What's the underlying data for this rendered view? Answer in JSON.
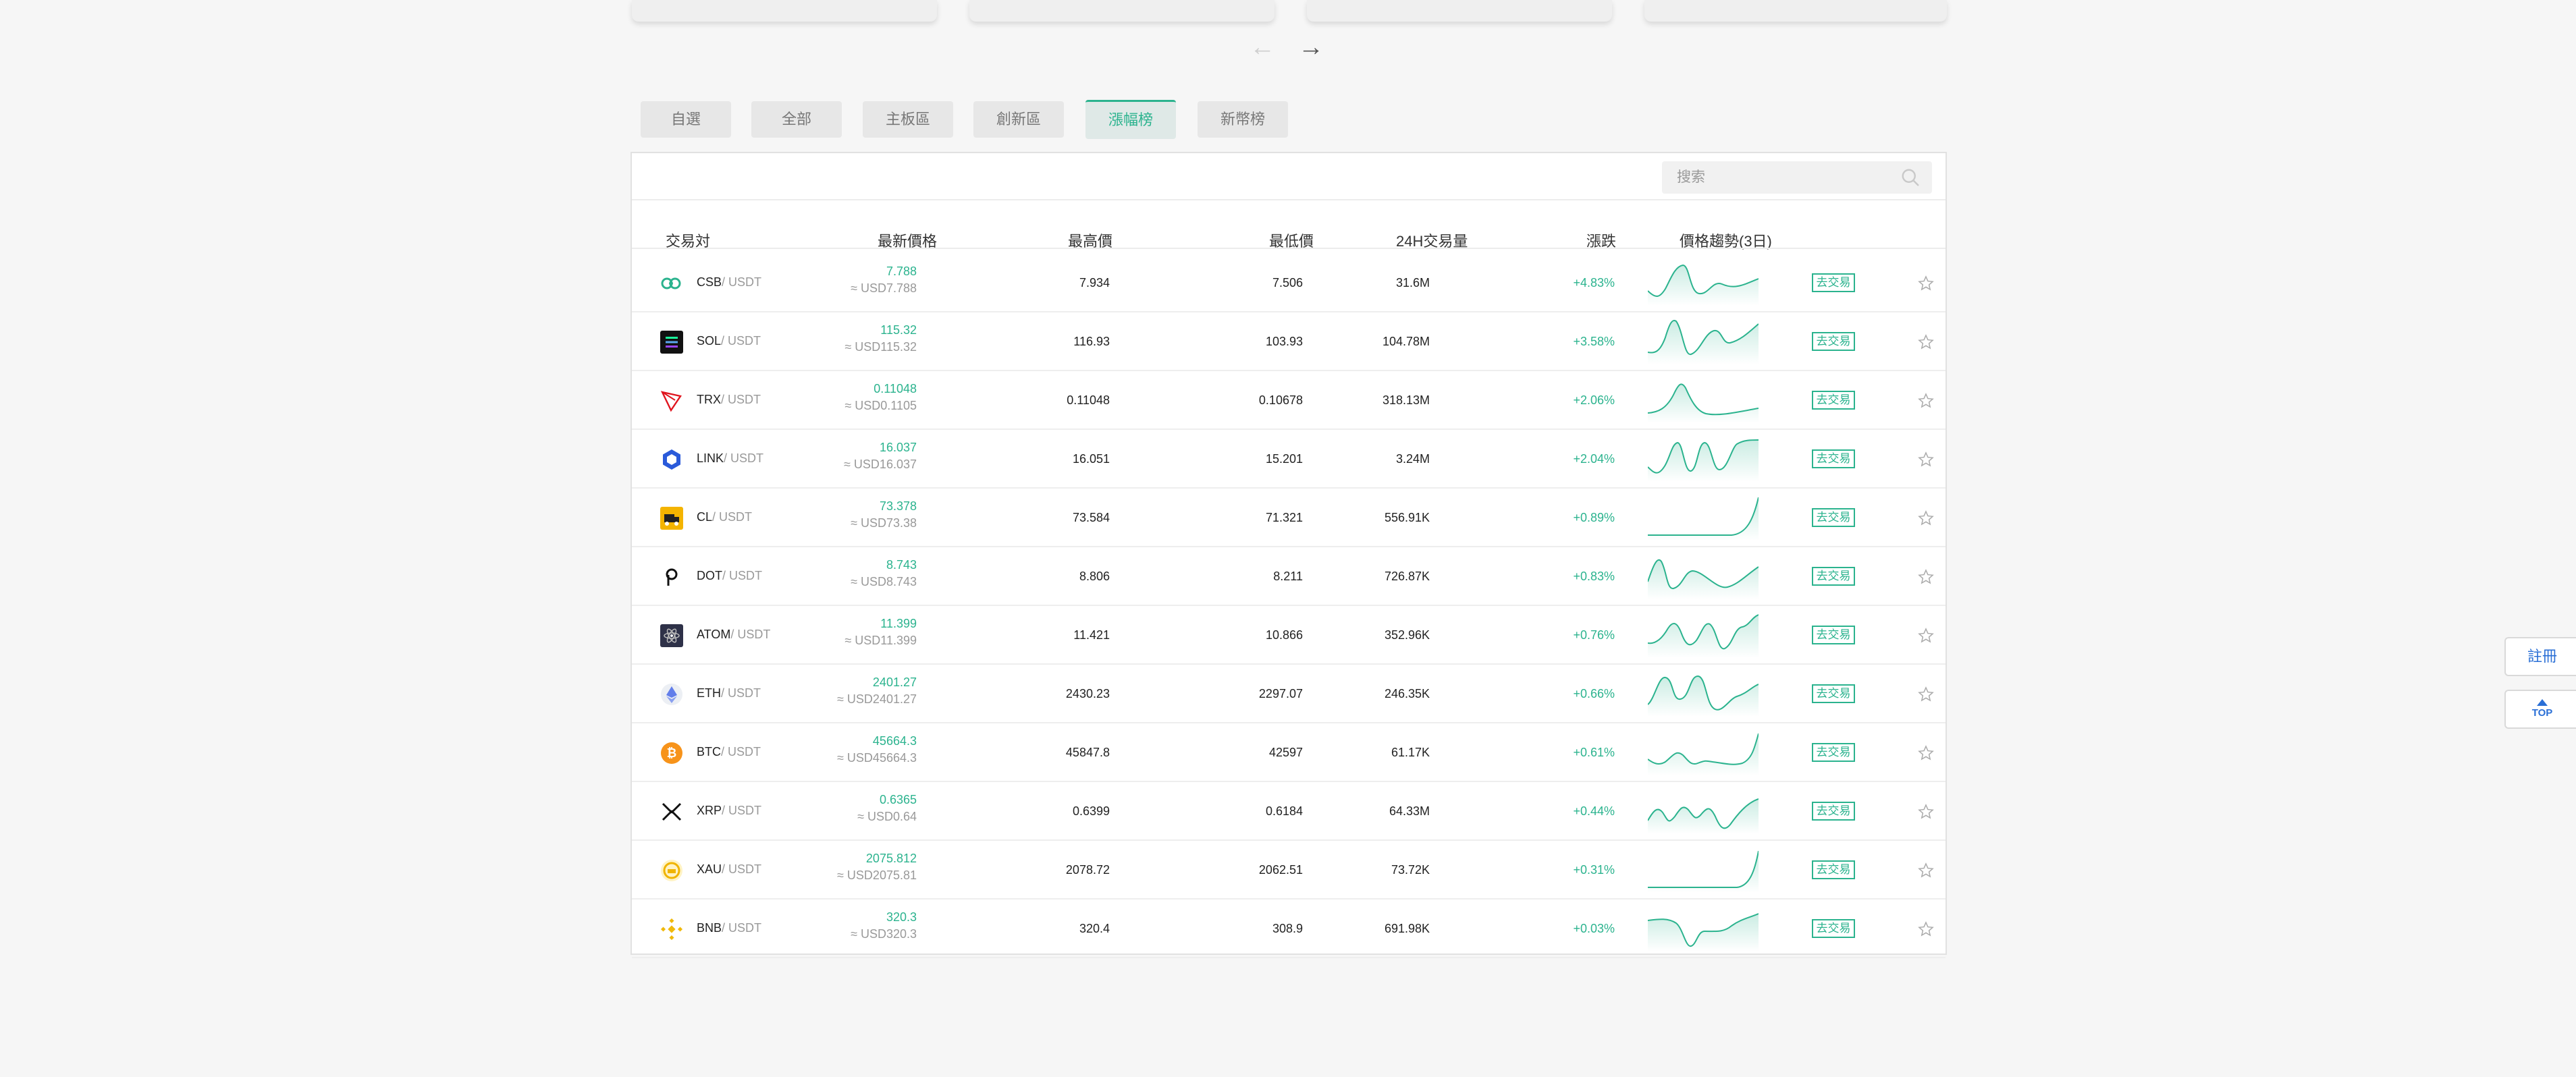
{
  "tabs": [
    {
      "label": "自選",
      "active": false
    },
    {
      "label": "全部",
      "active": false
    },
    {
      "label": "主板區",
      "active": false
    },
    {
      "label": "創新區",
      "active": false
    },
    {
      "label": "漲幅榜",
      "active": true
    },
    {
      "label": "新幣榜",
      "active": false
    }
  ],
  "search": {
    "placeholder": "搜索"
  },
  "columns": {
    "pair": "交易対",
    "last_price": "最新價格",
    "high": "最高價",
    "low": "最低價",
    "volume": "24H交易量",
    "change": "漲跌",
    "trend": "價格趨勢(3日)"
  },
  "rows": [
    {
      "base": "CSB",
      "quote": "/ USDT",
      "icon": "csb-icon",
      "price": "7.788",
      "usd": "≈ USD7.788",
      "high": "7.934",
      "low": "7.506",
      "volume": "31.6M",
      "change": "+4.83%",
      "trade": "去交易"
    },
    {
      "base": "SOL",
      "quote": "/ USDT",
      "icon": "sol-icon",
      "price": "115.32",
      "usd": "≈ USD115.32",
      "high": "116.93",
      "low": "103.93",
      "volume": "104.78M",
      "change": "+3.58%",
      "trade": "去交易"
    },
    {
      "base": "TRX",
      "quote": "/ USDT",
      "icon": "trx-icon",
      "price": "0.11048",
      "usd": "≈ USD0.1105",
      "high": "0.11048",
      "low": "0.10678",
      "volume": "318.13M",
      "change": "+2.06%",
      "trade": "去交易"
    },
    {
      "base": "LINK",
      "quote": "/ USDT",
      "icon": "link-icon",
      "price": "16.037",
      "usd": "≈ USD16.037",
      "high": "16.051",
      "low": "15.201",
      "volume": "3.24M",
      "change": "+2.04%",
      "trade": "去交易"
    },
    {
      "base": "CL",
      "quote": "/ USDT",
      "icon": "cl-icon",
      "price": "73.378",
      "usd": "≈ USD73.38",
      "high": "73.584",
      "low": "71.321",
      "volume": "556.91K",
      "change": "+0.89%",
      "trade": "去交易"
    },
    {
      "base": "DOT",
      "quote": "/ USDT",
      "icon": "dot-icon",
      "price": "8.743",
      "usd": "≈ USD8.743",
      "high": "8.806",
      "low": "8.211",
      "volume": "726.87K",
      "change": "+0.83%",
      "trade": "去交易"
    },
    {
      "base": "ATOM",
      "quote": "/ USDT",
      "icon": "atom-icon",
      "price": "11.399",
      "usd": "≈ USD11.399",
      "high": "11.421",
      "low": "10.866",
      "volume": "352.96K",
      "change": "+0.76%",
      "trade": "去交易"
    },
    {
      "base": "ETH",
      "quote": "/ USDT",
      "icon": "eth-icon",
      "price": "2401.27",
      "usd": "≈ USD2401.27",
      "high": "2430.23",
      "low": "2297.07",
      "volume": "246.35K",
      "change": "+0.66%",
      "trade": "去交易"
    },
    {
      "base": "BTC",
      "quote": "/ USDT",
      "icon": "btc-icon",
      "price": "45664.3",
      "usd": "≈ USD45664.3",
      "high": "45847.8",
      "low": "42597",
      "volume": "61.17K",
      "change": "+0.61%",
      "trade": "去交易"
    },
    {
      "base": "XRP",
      "quote": "/ USDT",
      "icon": "xrp-icon",
      "price": "0.6365",
      "usd": "≈ USD0.64",
      "high": "0.6399",
      "low": "0.6184",
      "volume": "64.33M",
      "change": "+0.44%",
      "trade": "去交易"
    },
    {
      "base": "XAU",
      "quote": "/ USDT",
      "icon": "xau-icon",
      "price": "2075.812",
      "usd": "≈ USD2075.81",
      "high": "2078.72",
      "low": "2062.51",
      "volume": "73.72K",
      "change": "+0.31%",
      "trade": "去交易"
    },
    {
      "base": "BNB",
      "quote": "/ USDT",
      "icon": "bnb-icon",
      "price": "320.3",
      "usd": "≈ USD320.3",
      "high": "320.4",
      "low": "308.9",
      "volume": "691.98K",
      "change": "+0.03%",
      "trade": "去交易"
    }
  ],
  "side": {
    "register": "註冊",
    "top": "TOP"
  },
  "colors": {
    "accent": "#2bb38e",
    "link": "#2a6fd6"
  }
}
